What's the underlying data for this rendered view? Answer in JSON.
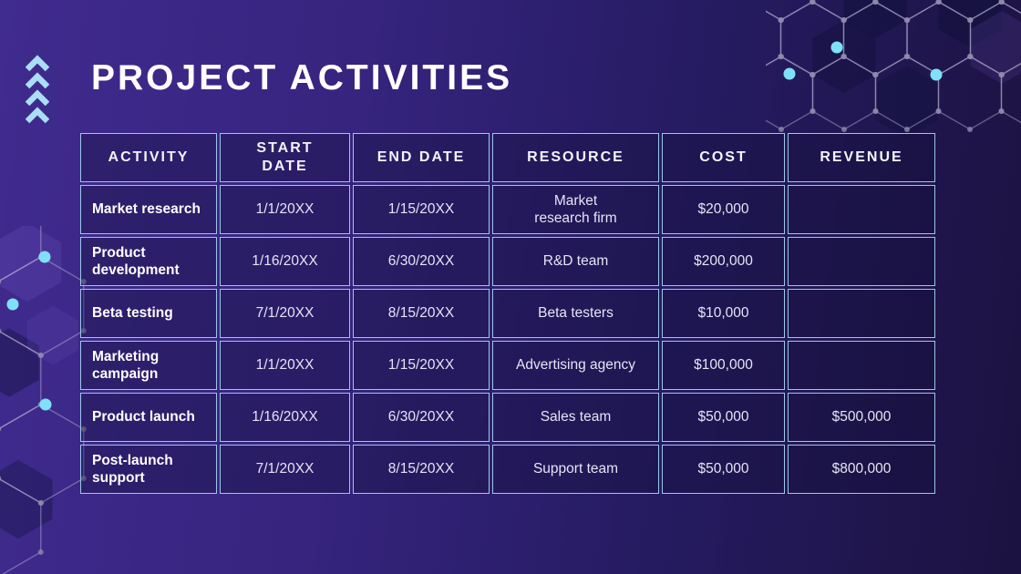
{
  "slide": {
    "title": "PROJECT ACTIVITIES"
  },
  "table": {
    "columns": [
      "ACTIVITY",
      "START\nDATE",
      "END DATE",
      "RESOURCE",
      "COST",
      "REVENUE"
    ],
    "rows": [
      {
        "activity": "Market research",
        "start": "1/1/20XX",
        "end": "1/15/20XX",
        "resource": "Market\nresearch firm",
        "cost": "$20,000",
        "revenue": ""
      },
      {
        "activity": "Product development",
        "start": "1/16/20XX",
        "end": "6/30/20XX",
        "resource": "R&D team",
        "cost": "$200,000",
        "revenue": ""
      },
      {
        "activity": "Beta testing",
        "start": "7/1/20XX",
        "end": "8/15/20XX",
        "resource": "Beta testers",
        "cost": "$10,000",
        "revenue": ""
      },
      {
        "activity": "Marketing campaign",
        "start": "1/1/20XX",
        "end": "1/15/20XX",
        "resource": "Advertising agency",
        "cost": "$100,000",
        "revenue": ""
      },
      {
        "activity": "Product launch",
        "start": "1/16/20XX",
        "end": "6/30/20XX",
        "resource": "Sales team",
        "cost": "$50,000",
        "revenue": "$500,000"
      },
      {
        "activity": "Post-launch support",
        "start": "7/1/20XX",
        "end": "8/15/20XX",
        "resource": "Support team",
        "cost": "$50,000",
        "revenue": "$800,000"
      }
    ]
  },
  "colors": {
    "background_gradient_left": "#402b8e",
    "background_gradient_right": "#1c1240",
    "table_border": "#9cc7e8",
    "cell_background": "rgba(18,14,52,0.34)",
    "title_text": "#ffffff",
    "body_text": "#e7e3f6",
    "accent_cyan_dot": "#7fe1f7",
    "chevron_blue": "#a9def5",
    "hexagon_line": "rgba(198,194,224,0.42)"
  }
}
